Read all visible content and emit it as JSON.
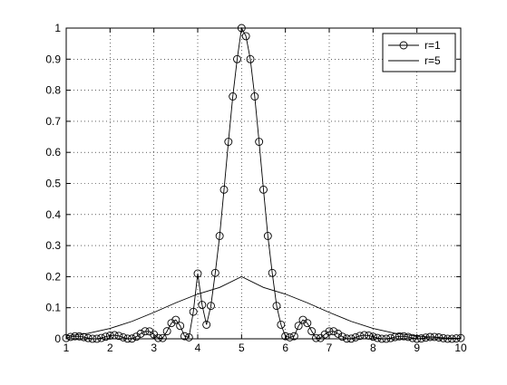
{
  "chart_data": {
    "type": "line",
    "title": "",
    "xlabel": "",
    "ylabel": "",
    "xlim": [
      1,
      10
    ],
    "ylim": [
      0,
      1
    ],
    "xticks": [
      "1",
      "2",
      "3",
      "4",
      "5",
      "6",
      "7",
      "8",
      "9",
      "10"
    ],
    "yticks": [
      "0",
      "0.1",
      "0.2",
      "0.3",
      "0.4",
      "0.5",
      "0.6",
      "0.7",
      "0.8",
      "0.9",
      "1"
    ],
    "grid": true,
    "grid_style": "dotted",
    "legend_position": "top-right",
    "series": [
      {
        "name": "r=1",
        "marker": "circle",
        "color": "#000000",
        "x": [
          1.0,
          1.1,
          1.2,
          1.3,
          1.4,
          1.5,
          1.6,
          1.7,
          1.8,
          1.9,
          2.0,
          2.1,
          2.2,
          2.3,
          2.4,
          2.5,
          2.6,
          2.7,
          2.8,
          2.9,
          3.0,
          3.1,
          3.2,
          3.3,
          3.4,
          3.5,
          3.6,
          3.7,
          3.8,
          3.9,
          4.0,
          4.1,
          4.2,
          4.3,
          4.4,
          4.5,
          4.6,
          4.7,
          4.8,
          4.9,
          5.0,
          5.1,
          5.2,
          5.3,
          5.4,
          5.5,
          5.6,
          5.7,
          5.8,
          5.9,
          6.0,
          6.1,
          6.2,
          6.3,
          6.4,
          6.5,
          6.6,
          6.7,
          6.8,
          6.9,
          7.0,
          7.1,
          7.2,
          7.3,
          7.4,
          7.5,
          7.6,
          7.7,
          7.8,
          7.9,
          8.0,
          8.1,
          8.2,
          8.3,
          8.4,
          8.5,
          8.6,
          8.7,
          8.8,
          8.9,
          9.0,
          9.1,
          9.2,
          9.3,
          9.4,
          9.5,
          9.6,
          9.7,
          9.8,
          9.9,
          10.0
        ],
        "y": [
          0.0025,
          0.0061,
          0.0081,
          0.0078,
          0.0055,
          0.0024,
          0.0002,
          0.0002,
          0.0027,
          0.0068,
          0.0104,
          0.0117,
          0.0094,
          0.0047,
          0.0006,
          0.0007,
          0.0067,
          0.0164,
          0.0241,
          0.0239,
          0.0141,
          0.0025,
          0.0025,
          0.0244,
          0.0506,
          0.061,
          0.0417,
          0.0084,
          0.0047,
          0.087,
          0.21,
          0.1092,
          0.0454,
          0.106,
          0.212,
          0.331,
          0.48,
          0.634,
          0.78,
          0.9,
          1.0,
          0.974,
          0.9,
          0.78,
          0.634,
          0.48,
          0.331,
          0.212,
          0.106,
          0.0454,
          0.0084,
          0.0047,
          0.0084,
          0.0417,
          0.061,
          0.0506,
          0.0244,
          0.0025,
          0.0025,
          0.0141,
          0.0239,
          0.0241,
          0.0164,
          0.0067,
          0.0007,
          0.0006,
          0.0047,
          0.0094,
          0.0117,
          0.0104,
          0.0068,
          0.0027,
          0.0002,
          0.0002,
          0.0024,
          0.0055,
          0.0078,
          0.0081,
          0.0061,
          0.0025,
          0.0,
          0.0013,
          0.0038,
          0.0058,
          0.006,
          0.0044,
          0.002,
          0.0003,
          0.0001,
          0.0013,
          0.0025
        ]
      },
      {
        "name": "r=5",
        "marker": "none",
        "color": "#000000",
        "x": [
          1.0,
          1.5,
          2.0,
          2.5,
          3.0,
          3.5,
          4.0,
          4.5,
          5.0,
          5.5,
          6.0,
          6.5,
          7.0,
          7.5,
          8.0,
          8.5,
          9.0,
          9.5,
          10.0
        ],
        "y": [
          0.0089,
          0.0178,
          0.0334,
          0.0561,
          0.0849,
          0.1159,
          0.1439,
          0.1653,
          0.2,
          0.1653,
          0.1439,
          0.1159,
          0.0849,
          0.0561,
          0.0334,
          0.0178,
          0.0089,
          0.0039,
          0.001
        ]
      }
    ]
  }
}
